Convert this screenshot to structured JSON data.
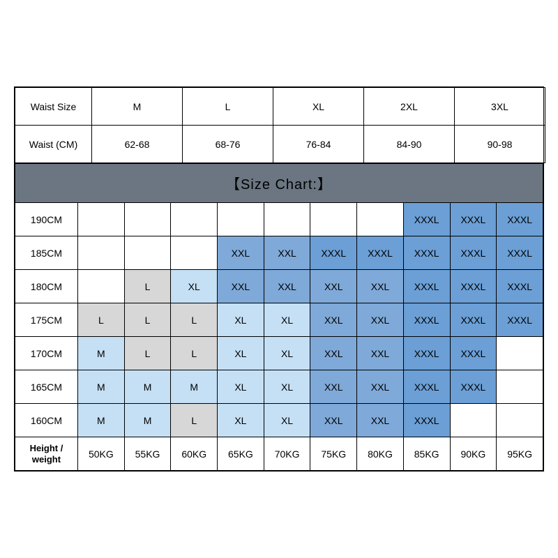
{
  "palette": {
    "none": "#ffffff",
    "gray": "#d7d7d7",
    "blue1": "#c5e0f5",
    "blue2": "#7fa9d8",
    "blue3": "#6b9fd6",
    "banner": "#6b7682",
    "border": "#000000"
  },
  "waist_header": {
    "label_size": "Waist Size",
    "label_cm": "Waist (CM)",
    "sizes": [
      "M",
      "L",
      "XL",
      "2XL",
      "3XL"
    ],
    "cm": [
      "62-68",
      "68-76",
      "76-84",
      "84-90",
      "90-98"
    ]
  },
  "banner_text": "【Size Chart:】",
  "footer": {
    "label": "Height / weight",
    "weights": [
      "50KG",
      "55KG",
      "60KG",
      "65KG",
      "70KG",
      "75KG",
      "80KG",
      "85KG",
      "90KG",
      "95KG"
    ]
  },
  "heights": [
    "190CM",
    "185CM",
    "180CM",
    "175CM",
    "170CM",
    "165CM",
    "160CM"
  ],
  "grid": [
    [
      {
        "t": "",
        "c": "none"
      },
      {
        "t": "",
        "c": "none"
      },
      {
        "t": "",
        "c": "none"
      },
      {
        "t": "",
        "c": "none"
      },
      {
        "t": "",
        "c": "none"
      },
      {
        "t": "",
        "c": "none"
      },
      {
        "t": "",
        "c": "none"
      },
      {
        "t": "XXXL",
        "c": "blue3"
      },
      {
        "t": "XXXL",
        "c": "blue3"
      },
      {
        "t": "XXXL",
        "c": "blue3"
      }
    ],
    [
      {
        "t": "",
        "c": "none"
      },
      {
        "t": "",
        "c": "none"
      },
      {
        "t": "",
        "c": "none"
      },
      {
        "t": "XXL",
        "c": "blue2"
      },
      {
        "t": "XXL",
        "c": "blue2"
      },
      {
        "t": "XXXL",
        "c": "blue3"
      },
      {
        "t": "XXXL",
        "c": "blue3"
      },
      {
        "t": "XXXL",
        "c": "blue3"
      },
      {
        "t": "XXXL",
        "c": "blue3"
      },
      {
        "t": "XXXL",
        "c": "blue3"
      }
    ],
    [
      {
        "t": "",
        "c": "none"
      },
      {
        "t": "L",
        "c": "gray"
      },
      {
        "t": "XL",
        "c": "blue1"
      },
      {
        "t": "XXL",
        "c": "blue2"
      },
      {
        "t": "XXL",
        "c": "blue2"
      },
      {
        "t": "XXL",
        "c": "blue2"
      },
      {
        "t": "XXL",
        "c": "blue2"
      },
      {
        "t": "XXXL",
        "c": "blue3"
      },
      {
        "t": "XXXL",
        "c": "blue3"
      },
      {
        "t": "XXXL",
        "c": "blue3"
      }
    ],
    [
      {
        "t": "L",
        "c": "gray"
      },
      {
        "t": "L",
        "c": "gray"
      },
      {
        "t": "L",
        "c": "gray"
      },
      {
        "t": "XL",
        "c": "blue1"
      },
      {
        "t": "XL",
        "c": "blue1"
      },
      {
        "t": "XXL",
        "c": "blue2"
      },
      {
        "t": "XXL",
        "c": "blue2"
      },
      {
        "t": "XXXL",
        "c": "blue3"
      },
      {
        "t": "XXXL",
        "c": "blue3"
      },
      {
        "t": "XXXL",
        "c": "blue3"
      }
    ],
    [
      {
        "t": "M",
        "c": "blue1"
      },
      {
        "t": "L",
        "c": "gray"
      },
      {
        "t": "L",
        "c": "gray"
      },
      {
        "t": "XL",
        "c": "blue1"
      },
      {
        "t": "XL",
        "c": "blue1"
      },
      {
        "t": "XXL",
        "c": "blue2"
      },
      {
        "t": "XXL",
        "c": "blue2"
      },
      {
        "t": "XXXL",
        "c": "blue3"
      },
      {
        "t": "XXXL",
        "c": "blue3"
      },
      {
        "t": "",
        "c": "none"
      }
    ],
    [
      {
        "t": "M",
        "c": "blue1"
      },
      {
        "t": "M",
        "c": "blue1"
      },
      {
        "t": "M",
        "c": "blue1"
      },
      {
        "t": "XL",
        "c": "blue1"
      },
      {
        "t": "XL",
        "c": "blue1"
      },
      {
        "t": "XXL",
        "c": "blue2"
      },
      {
        "t": "XXL",
        "c": "blue2"
      },
      {
        "t": "XXXL",
        "c": "blue3"
      },
      {
        "t": "XXXL",
        "c": "blue3"
      },
      {
        "t": "",
        "c": "none"
      }
    ],
    [
      {
        "t": "M",
        "c": "blue1"
      },
      {
        "t": "M",
        "c": "blue1"
      },
      {
        "t": "L",
        "c": "gray"
      },
      {
        "t": "XL",
        "c": "blue1"
      },
      {
        "t": "XL",
        "c": "blue1"
      },
      {
        "t": "XXL",
        "c": "blue2"
      },
      {
        "t": "XXL",
        "c": "blue2"
      },
      {
        "t": "XXXL",
        "c": "blue3"
      },
      {
        "t": "",
        "c": "none"
      },
      {
        "t": "",
        "c": "none"
      }
    ]
  ]
}
